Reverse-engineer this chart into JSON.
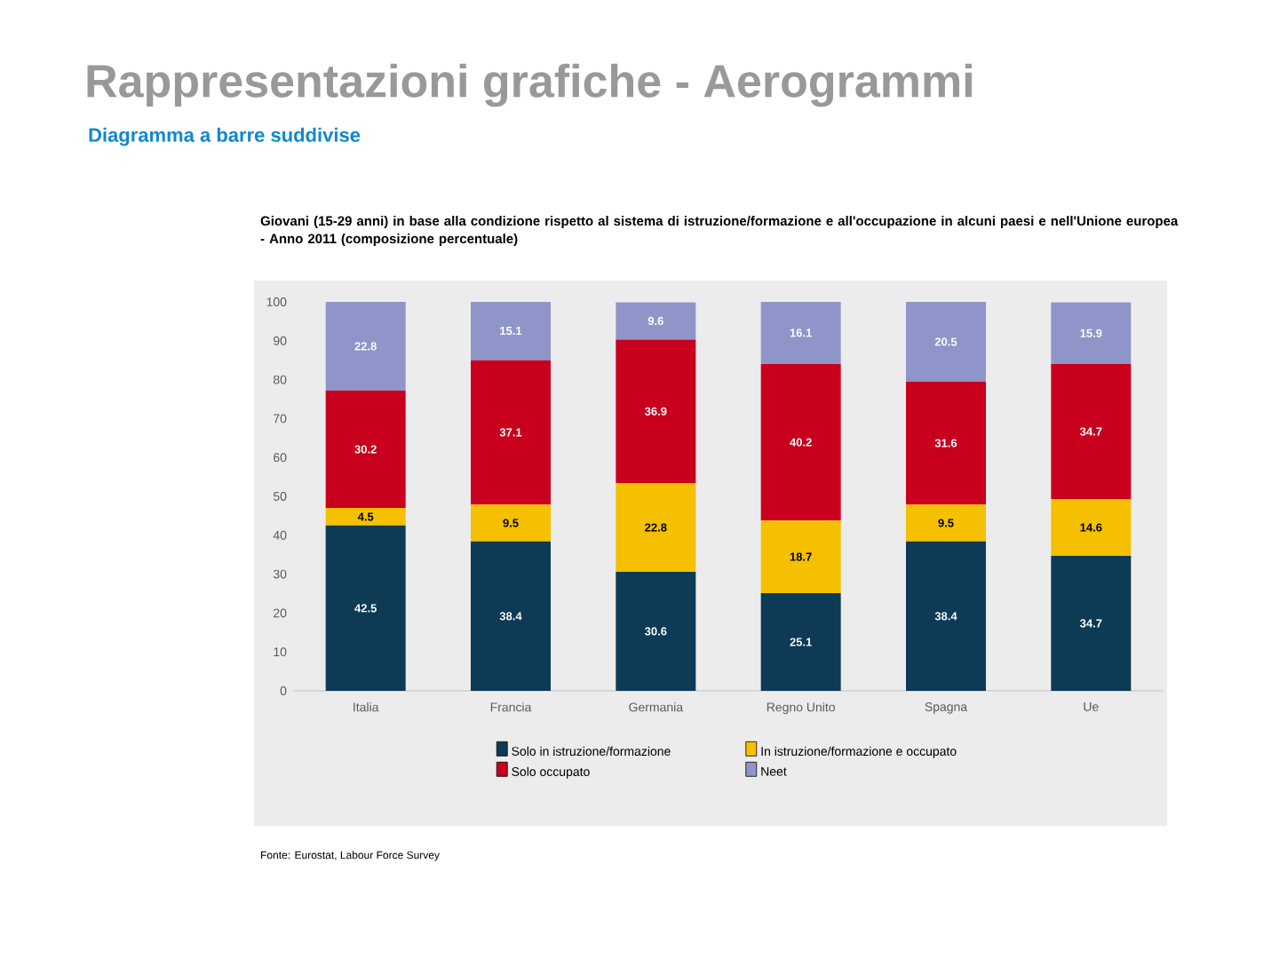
{
  "chart_data": {
    "type": "bar",
    "stacked": true,
    "title": "Rappresentazioni grafiche - Aerogrammi",
    "subtitle": "Diagramma a barre suddivise",
    "annotations": [
      "Giovani (15-29 anni) in base alla condizione rispetto al sistema di istruzione/formazione e all'occupazione in alcuni paesi e nell'Unione europea - Anno 2011 (composizione percentuale)",
      "Fonte: Eurostat, Labour Force Survey"
    ],
    "categories": [
      "Italia",
      "Francia",
      "Germania",
      "Regno Unito",
      "Spagna",
      "Ue"
    ],
    "series": [
      {
        "name": "Solo in istruzione/formazione",
        "color": "#0d3a55",
        "values": [
          42.5,
          38.4,
          30.6,
          25.1,
          38.4,
          34.7
        ]
      },
      {
        "name": "In istruzione/formazione e occupato",
        "color": "#f5c000",
        "values": [
          4.5,
          9.5,
          22.8,
          18.7,
          9.5,
          14.6
        ]
      },
      {
        "name": "Solo occupato",
        "color": "#c8001e",
        "values": [
          30.2,
          37.1,
          36.9,
          40.2,
          31.6,
          34.7
        ]
      },
      {
        "name": "Neet",
        "color": "#8f95c9",
        "values": [
          22.8,
          15.1,
          9.6,
          16.1,
          20.5,
          15.9
        ]
      }
    ],
    "ylim": [
      0,
      100
    ],
    "yticks": [
      0,
      10,
      20,
      30,
      40,
      50,
      60,
      70,
      80,
      90,
      100
    ],
    "data_labels": true,
    "legend": "bottom",
    "grid": false
  }
}
